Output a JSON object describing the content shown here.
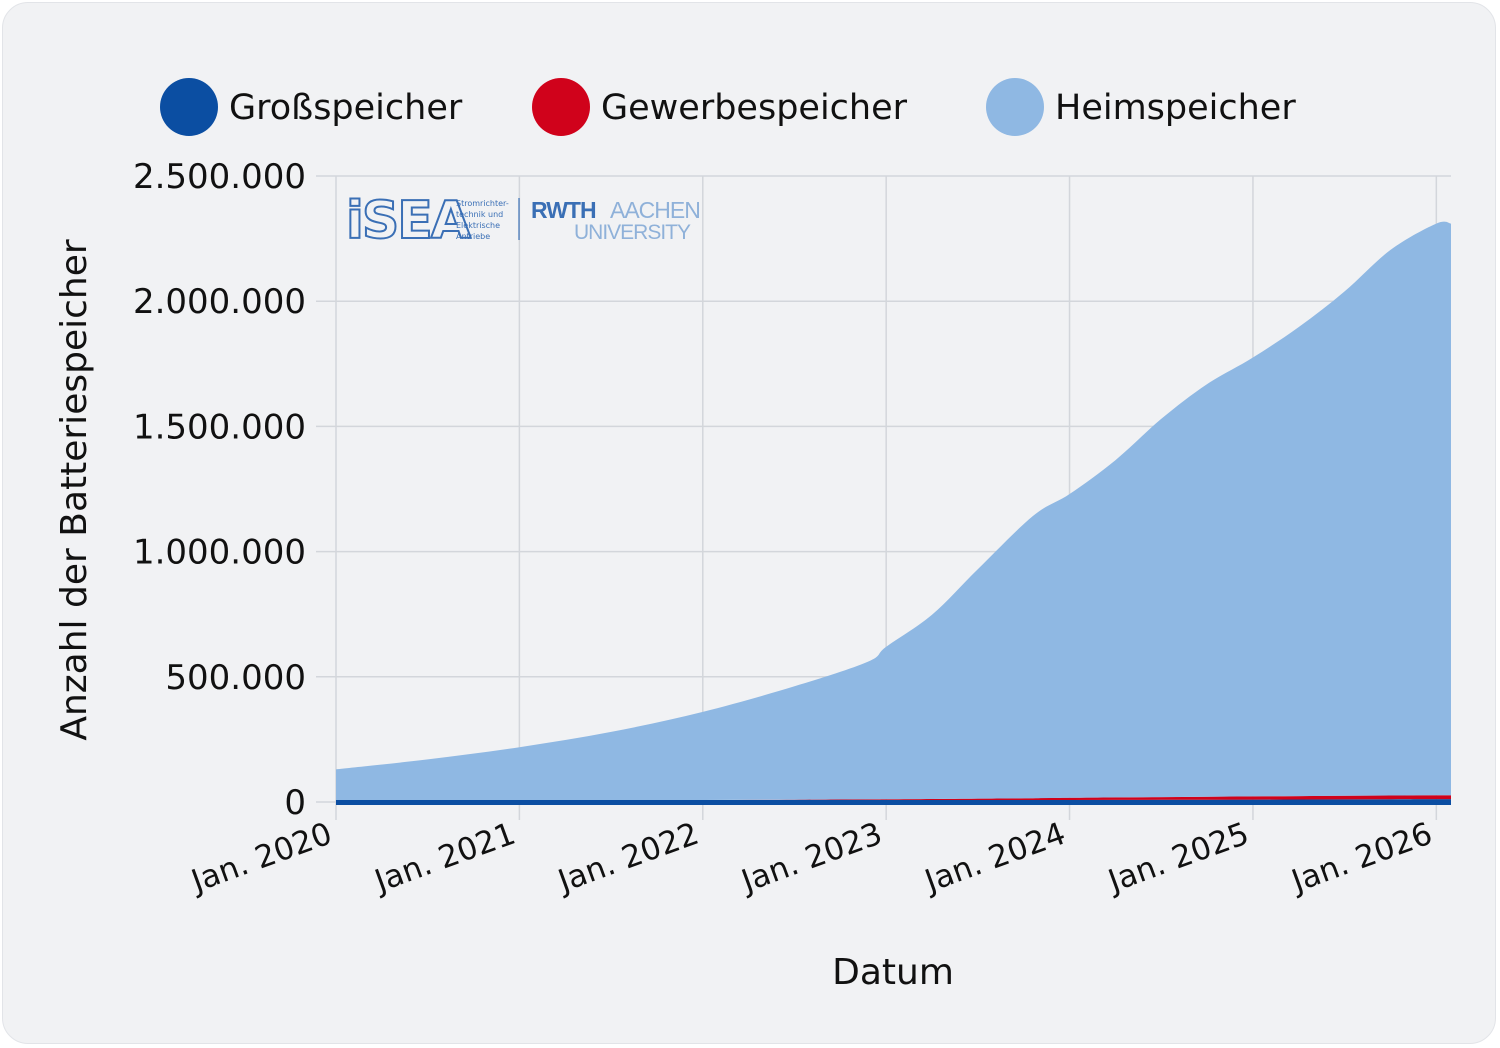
{
  "chart_data": {
    "type": "area",
    "stacked": true,
    "xlabel": "Datum",
    "ylabel": "Anzahl der Batteriespeicher",
    "ylim": [
      0,
      2500000
    ],
    "y_ticks": [
      {
        "value": 0,
        "label": "0"
      },
      {
        "value": 500000,
        "label": "500.000"
      },
      {
        "value": 1000000,
        "label": "1.000.000"
      },
      {
        "value": 1500000,
        "label": "1.500.000"
      },
      {
        "value": 2000000,
        "label": "2.000.000"
      },
      {
        "value": 2500000,
        "label": "2.500.000"
      }
    ],
    "x_range": [
      2020.0,
      2026.08
    ],
    "x_ticks": [
      {
        "value": 2020,
        "label": "Jan. 2020"
      },
      {
        "value": 2021,
        "label": "Jan. 2021"
      },
      {
        "value": 2022,
        "label": "Jan. 2022"
      },
      {
        "value": 2023,
        "label": "Jan. 2023"
      },
      {
        "value": 2024,
        "label": "Jan. 2024"
      },
      {
        "value": 2025,
        "label": "Jan. 2025"
      },
      {
        "value": 2026,
        "label": "Jan. 2026"
      }
    ],
    "grid": true,
    "legend_position": "top",
    "x": [
      2020.0,
      2020.5,
      2021.0,
      2021.5,
      2022.0,
      2022.5,
      2022.9,
      2023.0,
      2023.25,
      2023.5,
      2023.8,
      2024.0,
      2024.25,
      2024.5,
      2024.75,
      2025.0,
      2025.25,
      2025.5,
      2025.75,
      2026.0,
      2026.08
    ],
    "series": [
      {
        "name": "Großspeicher",
        "color": "#0b4ea2",
        "values": [
          3000,
          3500,
          4000,
          4500,
          5000,
          5500,
          6000,
          6200,
          6600,
          7000,
          7500,
          8000,
          8400,
          8800,
          9200,
          9600,
          10000,
          10500,
          11000,
          11500,
          11600
        ]
      },
      {
        "name": "Gewerbespeicher",
        "color": "#d0021b",
        "values": [
          1000,
          1300,
          1700,
          2200,
          2800,
          3500,
          4200,
          4600,
          5500,
          6500,
          7800,
          8800,
          9800,
          10800,
          11800,
          12800,
          13600,
          14400,
          15000,
          15400,
          15400
        ]
      },
      {
        "name": "Heimspeicher",
        "color": "#8fb8e3",
        "values": [
          126000,
          165500,
          213300,
          273300,
          352200,
          453000,
          549800,
          609200,
          735900,
          916500,
          1126700,
          1213200,
          1346800,
          1510400,
          1648000,
          1752600,
          1873400,
          2014100,
          2179000,
          2283100,
          2283000
        ]
      }
    ]
  },
  "logos": {
    "isea_mark": "iSEA",
    "isea_sub": [
      "Stromrichter-",
      "technik und",
      "Elektrische",
      "Antriebe"
    ],
    "rwth_bold": "RWTH",
    "rwth_light": "AACHEN",
    "rwth_university": "UNIVERSITY"
  }
}
